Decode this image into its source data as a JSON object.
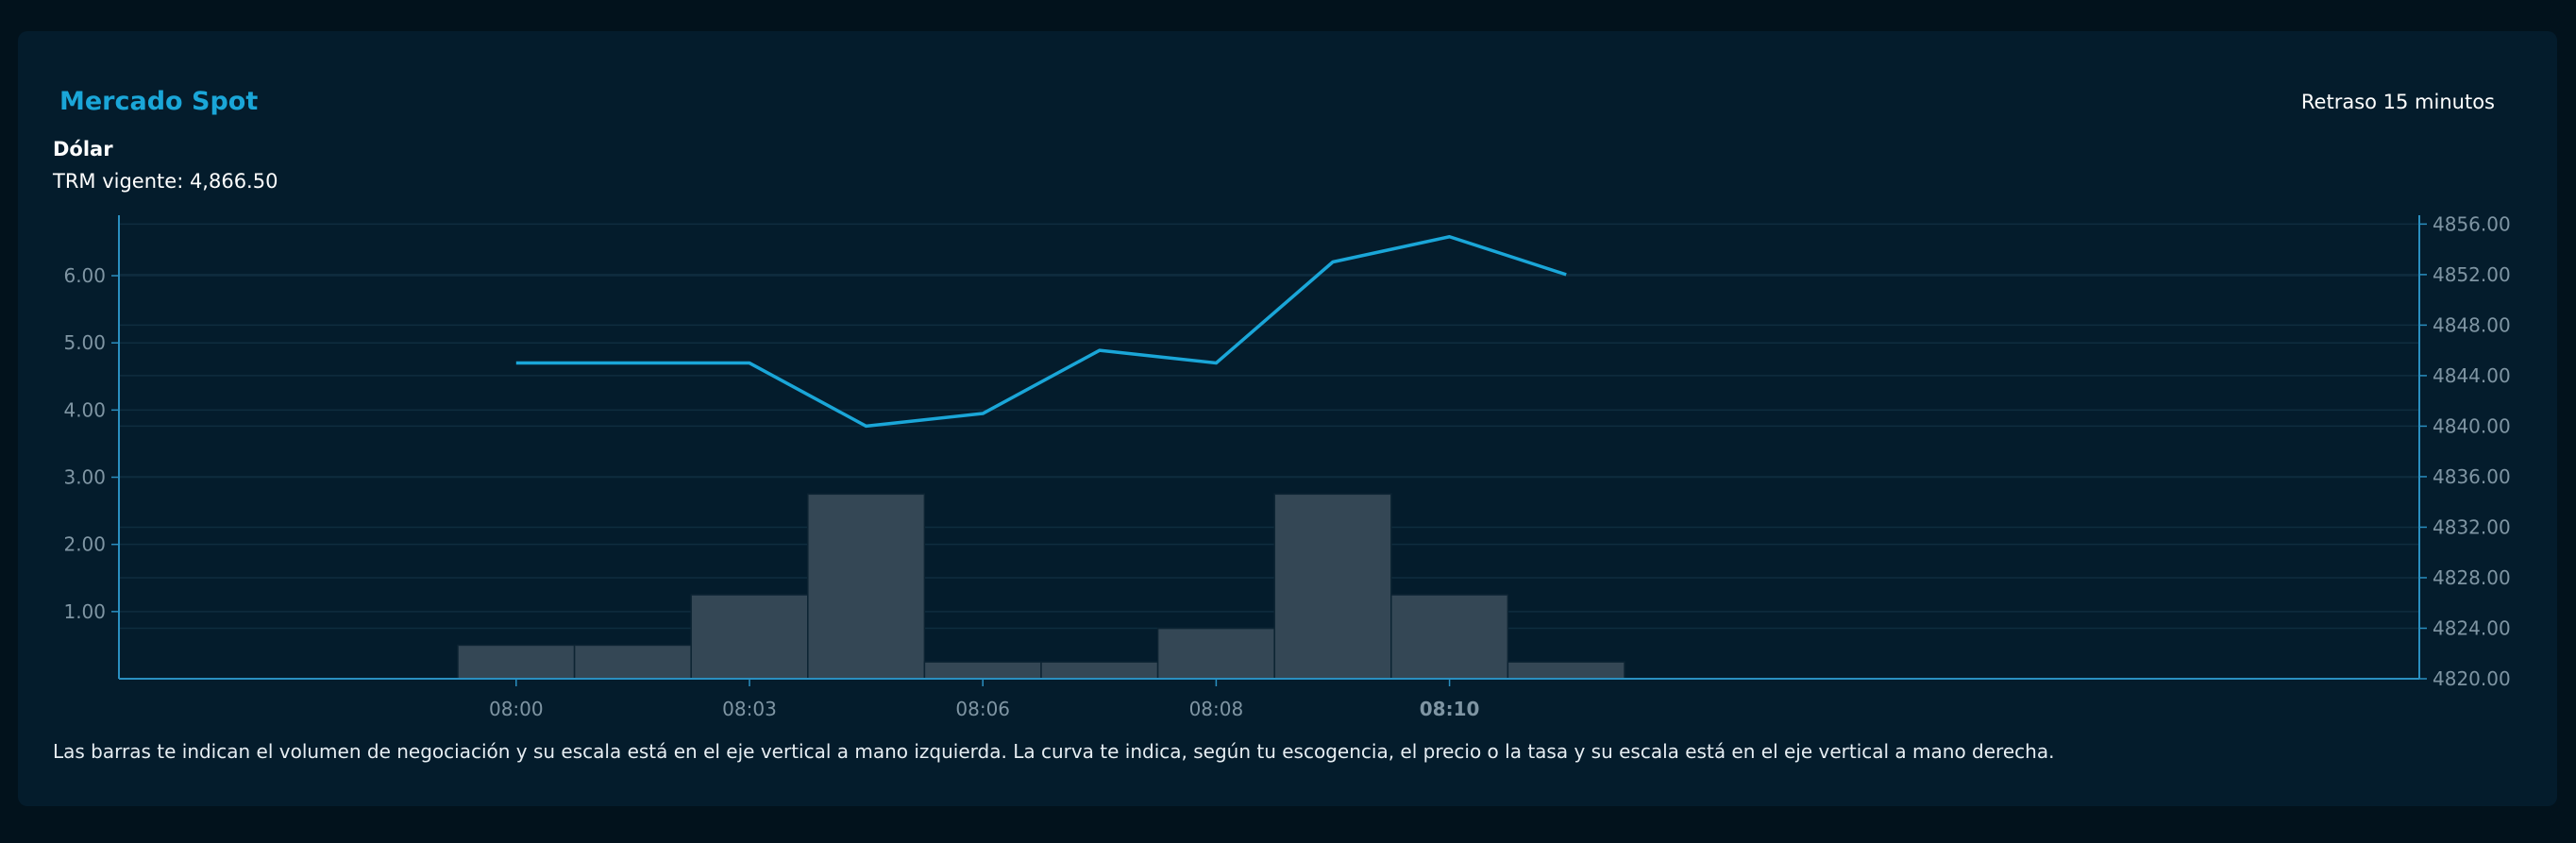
{
  "header": {
    "title": "Mercado Spot",
    "delay": "Retraso 15 minutos"
  },
  "info": {
    "currency": "Dólar",
    "trm": "TRM vigente: 4,866.50"
  },
  "footer": {
    "note": "Las barras te indican el volumen de negociación y su escala está en el eje vertical a mano izquierda. La curva te indica, según tu escogencia, el precio o la tasa y su escala está en el eje vertical a mano derecha."
  },
  "colors": {
    "line": "#1aa6d8",
    "bar": "#344755",
    "axis": "#2a8fc0",
    "grid": "#0f2d3f"
  },
  "chart_data": {
    "type": "bar+line",
    "categories": [
      "08:00",
      "",
      "08:03",
      "",
      "08:06",
      "",
      "08:08",
      "",
      "08:10",
      ""
    ],
    "bold_category": "08:10",
    "series": [
      {
        "name": "Volumen",
        "type": "bar",
        "axis": "left",
        "values": [
          0.5,
          0.5,
          1.25,
          2.75,
          0.25,
          0.25,
          0.75,
          2.75,
          1.25,
          0.25
        ]
      },
      {
        "name": "Precio",
        "type": "line",
        "axis": "right",
        "values": [
          4845,
          4845,
          4845,
          4840,
          4841,
          4846,
          4845,
          4853,
          4855,
          4852
        ]
      }
    ],
    "left_axis": {
      "ylim": [
        0,
        6.9
      ],
      "ticks": [
        "1.00",
        "2.00",
        "3.00",
        "4.00",
        "5.00",
        "6.00"
      ]
    },
    "right_axis": {
      "ylim": [
        4820,
        4856.7
      ],
      "ticks": [
        "4820.00",
        "4824.00",
        "4828.00",
        "4832.00",
        "4836.00",
        "4840.00",
        "4844.00",
        "4848.00",
        "4852.00",
        "4856.00"
      ]
    },
    "grid": true
  }
}
